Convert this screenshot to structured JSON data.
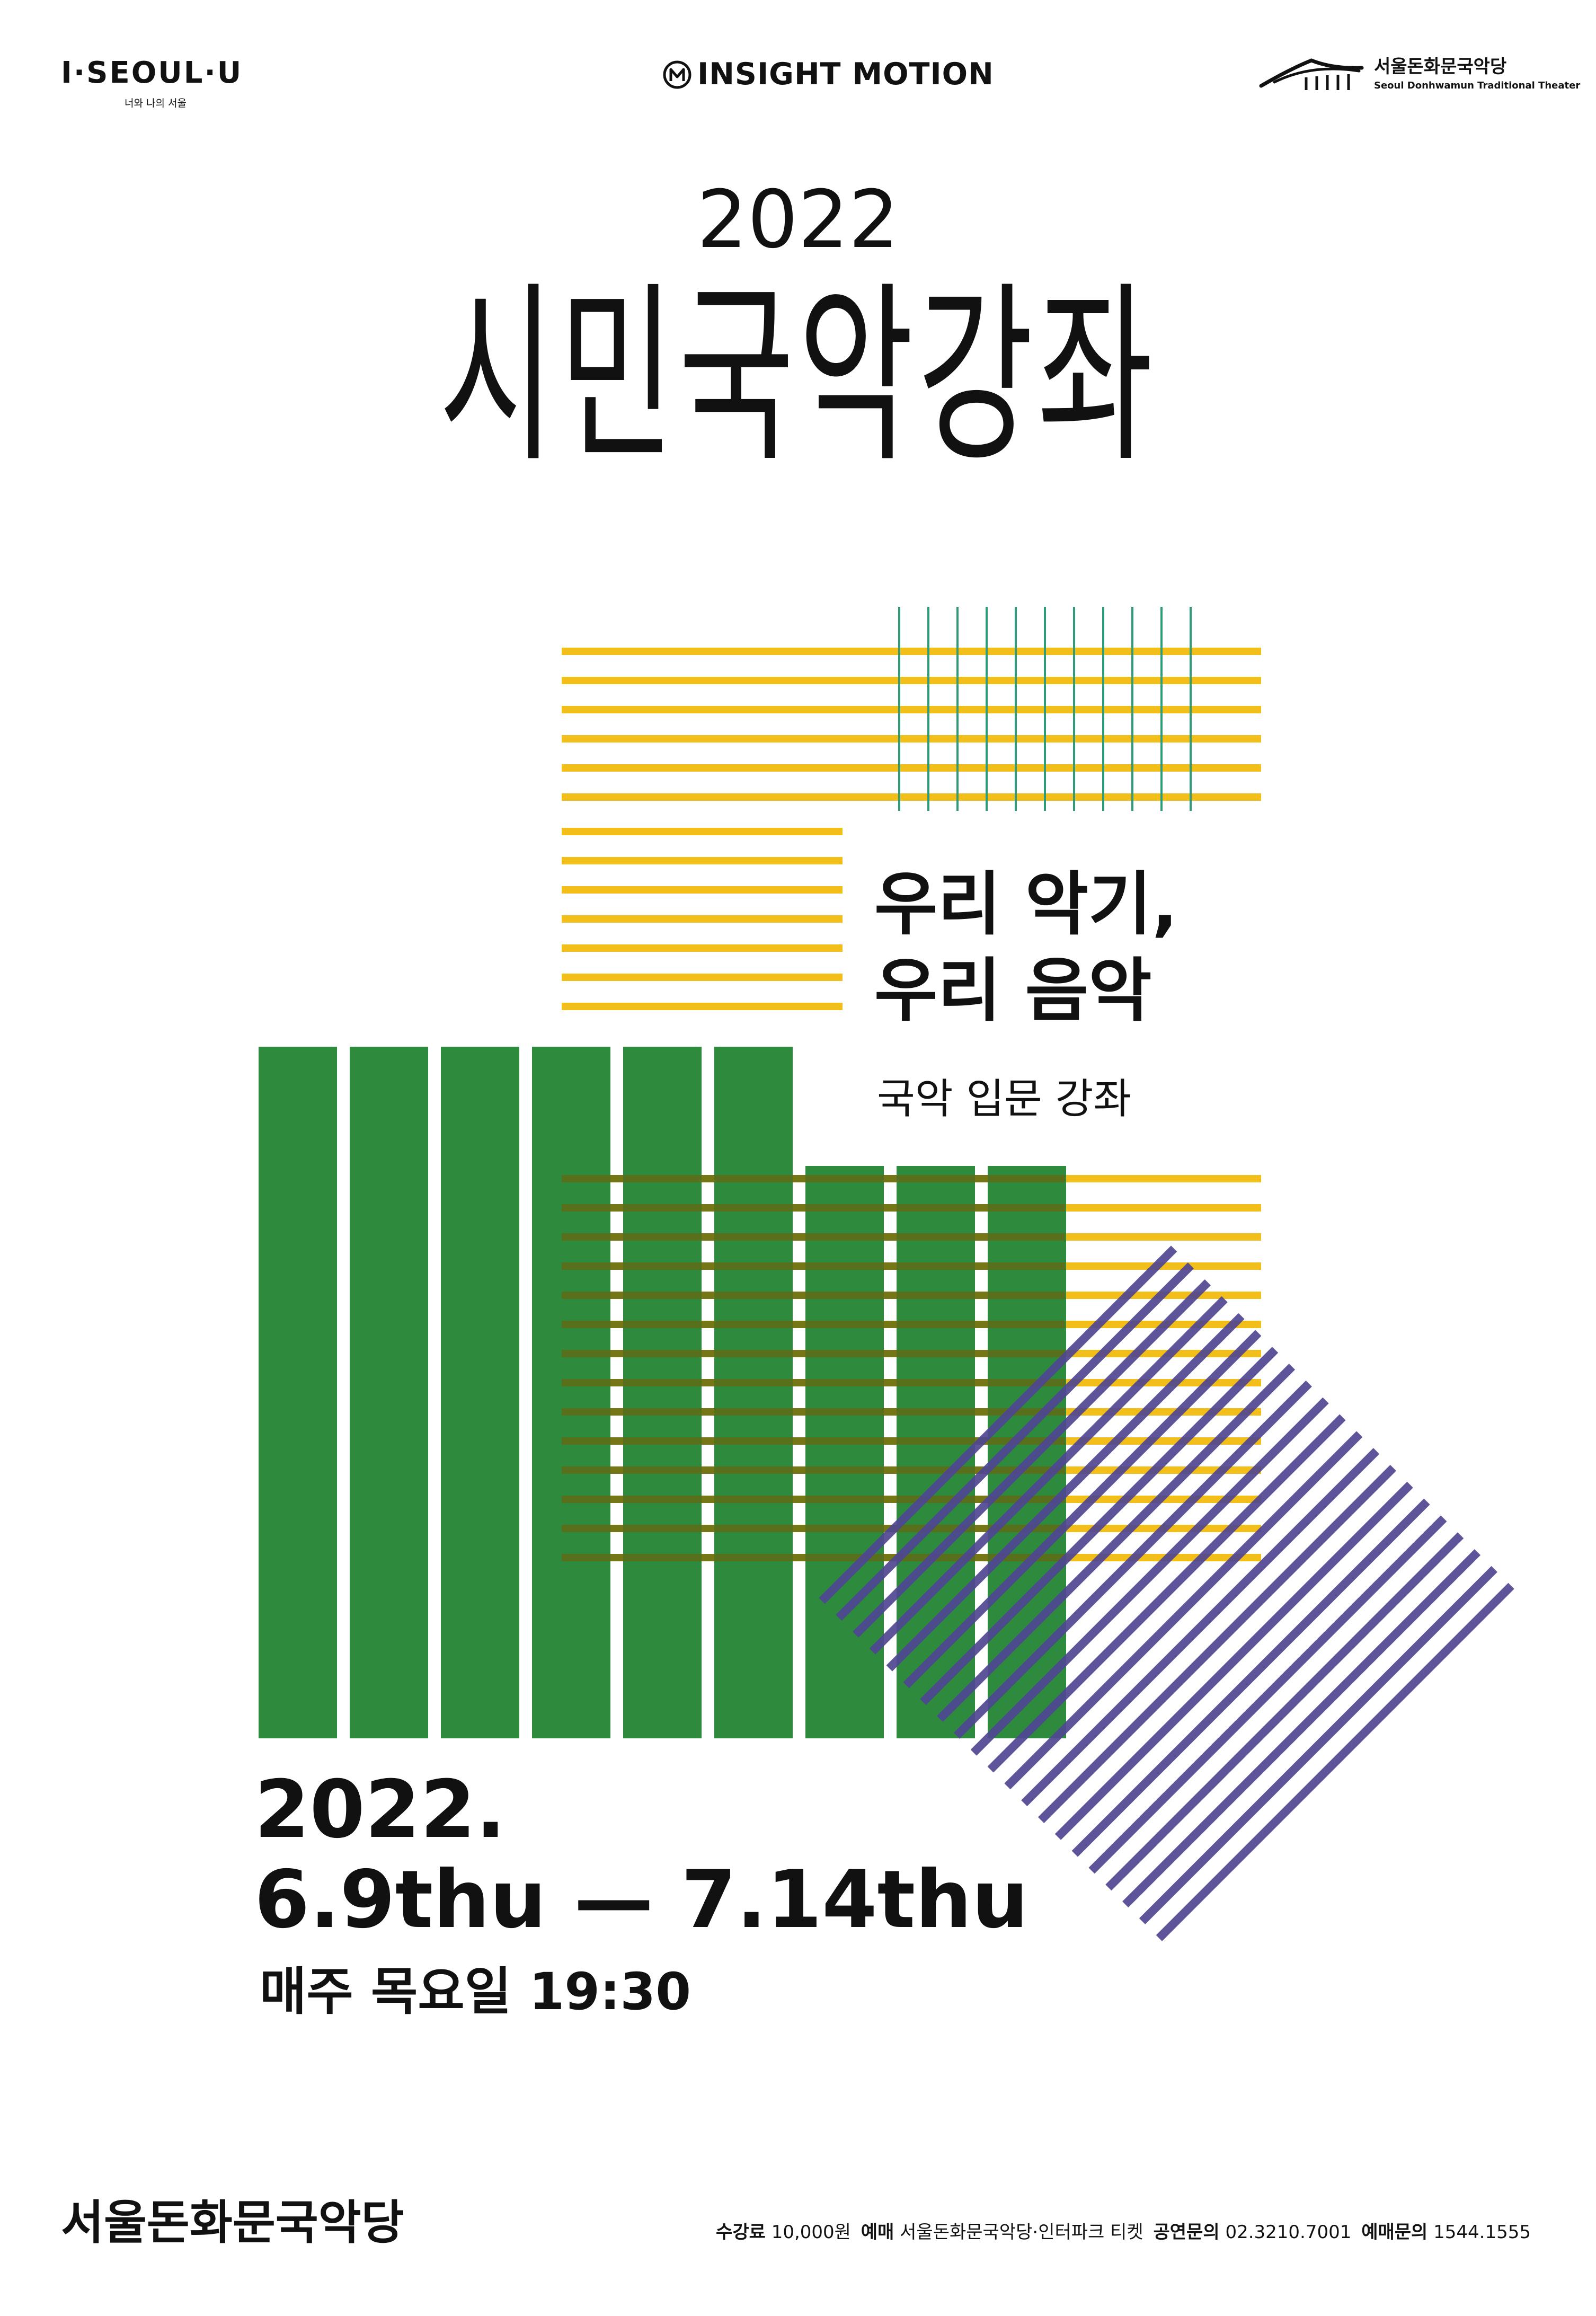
{
  "header": {
    "left_logo": "I·SEOUL·U",
    "left_logo_sub": "너와 나의 서울",
    "center_logo": "INSIGHT MOTION",
    "right_logo_ko": "서울돈화문국악당",
    "right_logo_en": "Seoul Donhwamun Traditional Theater"
  },
  "title": {
    "year": "2022",
    "main": "시민국악강좌"
  },
  "subtitle": {
    "line1": "우리 악기,",
    "line2": "우리 음악",
    "line3": "국악 입문 강좌"
  },
  "schedule": {
    "line1": "2022.",
    "line2": "6.9thu — 7.14thu",
    "line3": "매주 목요일 19:30"
  },
  "venue": "서울돈화문국악당",
  "footer": {
    "fee_label": "수강료",
    "fee_value": "10,000원",
    "booking_label": "예매",
    "booking_value": "서울돈화문국악당·인터파크 티켓",
    "inquiry_label": "공연문의",
    "inquiry_value": "02.3210.7001",
    "ticket_label": "예매문의",
    "ticket_value": "1544.1555"
  },
  "colors": {
    "yellow": "#f2be1a",
    "green": "#2c8a3c",
    "purple": "#4f4591",
    "teal": "#2e9c7a",
    "text": "#111111"
  }
}
